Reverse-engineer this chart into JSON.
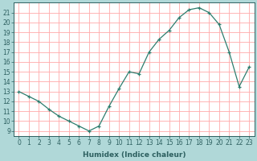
{
  "x": [
    0,
    1,
    2,
    3,
    4,
    5,
    6,
    7,
    8,
    9,
    10,
    11,
    12,
    13,
    14,
    15,
    16,
    17,
    18,
    19,
    20,
    21,
    22,
    23
  ],
  "y": [
    13,
    12.5,
    12,
    11.2,
    10.5,
    10,
    9.5,
    9,
    9.5,
    11.5,
    13.3,
    15,
    14.8,
    17,
    18.3,
    19.2,
    20.5,
    21.3,
    21.5,
    21,
    19.8,
    17,
    13.5,
    15.5
  ],
  "line_color": "#2d7d6e",
  "marker": "+",
  "figure_bg": "#b0d8d8",
  "plot_bg": "#ffffff",
  "grid_color": "#ffaaaa",
  "xlabel": "Humidex (Indice chaleur)",
  "ylim": [
    8.5,
    22
  ],
  "xlim": [
    -0.5,
    23.5
  ],
  "yticks": [
    9,
    10,
    11,
    12,
    13,
    14,
    15,
    16,
    17,
    18,
    19,
    20,
    21
  ],
  "xticks": [
    0,
    1,
    2,
    3,
    4,
    5,
    6,
    7,
    8,
    9,
    10,
    11,
    12,
    13,
    14,
    15,
    16,
    17,
    18,
    19,
    20,
    21,
    22,
    23
  ],
  "xlabel_fontsize": 6.5,
  "tick_fontsize": 5.5,
  "axis_color": "#2d6060",
  "spine_color": "#2d6060"
}
